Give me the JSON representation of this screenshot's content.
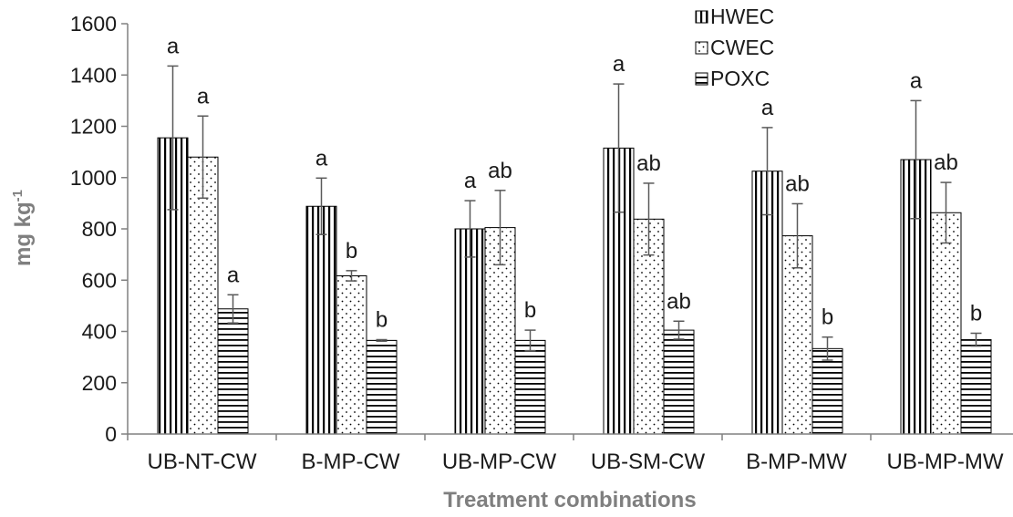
{
  "chart_data": {
    "type": "bar",
    "categories": [
      "UB-NT-CW",
      "B-MP-CW",
      "UB-MP-CW",
      "UB-SM-CW",
      "B-MP-MW",
      "UB-MP-MW"
    ],
    "series": [
      {
        "name": "HWEC",
        "pattern": "vertical-lines",
        "values": [
          1155,
          888,
          800,
          1115,
          1025,
          1070
        ],
        "errors": [
          280,
          110,
          110,
          250,
          170,
          230
        ],
        "letters": [
          "a",
          "a",
          "a",
          "a",
          "a",
          "a"
        ]
      },
      {
        "name": "CWEC",
        "pattern": "dots",
        "values": [
          1080,
          617,
          805,
          838,
          773,
          863
        ],
        "errors": [
          160,
          20,
          145,
          140,
          125,
          118
        ],
        "letters": [
          "a",
          "b",
          "ab",
          "ab",
          "ab",
          "ab"
        ]
      },
      {
        "name": "POXC",
        "pattern": "horizontal-lines",
        "values": [
          488,
          365,
          365,
          405,
          333,
          368
        ],
        "errors": [
          55,
          3,
          40,
          35,
          45,
          25
        ],
        "letters": [
          "a",
          "b",
          "b",
          "ab",
          "b",
          "b"
        ]
      }
    ],
    "ylabel_main": "mg kg",
    "ylabel_sup": "-1",
    "xlabel": "Treatment combinations",
    "ylim": [
      0,
      1600
    ],
    "yticks": [
      0,
      200,
      400,
      600,
      800,
      1000,
      1200,
      1400,
      1600
    ],
    "grid": false,
    "legend_position": "top-right",
    "colors": {
      "bar_fill": "#ffffff",
      "bar_pattern": "#000000",
      "error_bar": "#595959",
      "axis": "#808080",
      "axis_title": "#7f7f7f",
      "text": "#1a1a1a"
    }
  }
}
